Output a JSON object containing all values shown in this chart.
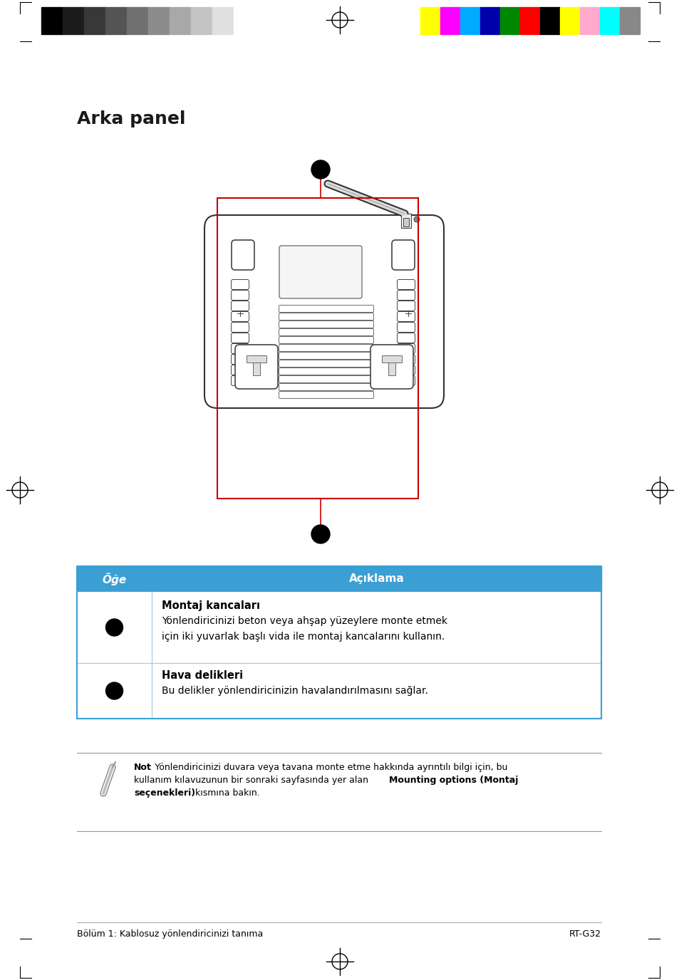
{
  "title": "Arka panel",
  "bg_color": "#ffffff",
  "page_width": 9.54,
  "page_height": 13.76,
  "header_gray_colors": [
    "#000000",
    "#1c1c1c",
    "#383838",
    "#545454",
    "#707070",
    "#8c8c8c",
    "#a8a8a8",
    "#c4c4c4",
    "#e0e0e0",
    "#ffffff"
  ],
  "header_rgb_colors": [
    "#ffff00",
    "#ff00ff",
    "#00aaff",
    "#0000aa",
    "#008800",
    "#ff0000",
    "#000000",
    "#ffff00",
    "#ffaacc",
    "#00ffff",
    "#888888"
  ],
  "table_header_color": "#3b9fd4",
  "table_col1_label": "Öğe",
  "table_col2_label": "Açıklama",
  "row1_title": "Montaj kancaları",
  "row1_line1": "Yönlendiricinizi beton veya ahşap yüzeylere monte etmek",
  "row1_line2": "için iki yuvarlak başlı vida ile montaj kancalarını kullanın.",
  "row2_title": "Hava delikleri",
  "row2_line1": "Bu delikler yönlendiricinizin havalandırılmasını sağlar.",
  "note_line1_bold": "Not",
  "note_line1_normal": ": Yönlendiricinizi duvara veya tavana monte etme hakkında ayrıntılı bilgi için, bu",
  "note_line2": "kullanım kılavuzunun bir sonraki sayfasında yer alan ",
  "note_line2_bold": "Mounting options (Montaj",
  "note_line3_bold": "seçenekleri)",
  "note_line3_normal": " kısmına bakın.",
  "footer_left": "Bölüm 1: Kablosuz yönlendiricinizi tanıma",
  "footer_right": "RT-G32",
  "red_color": "#cc0000"
}
